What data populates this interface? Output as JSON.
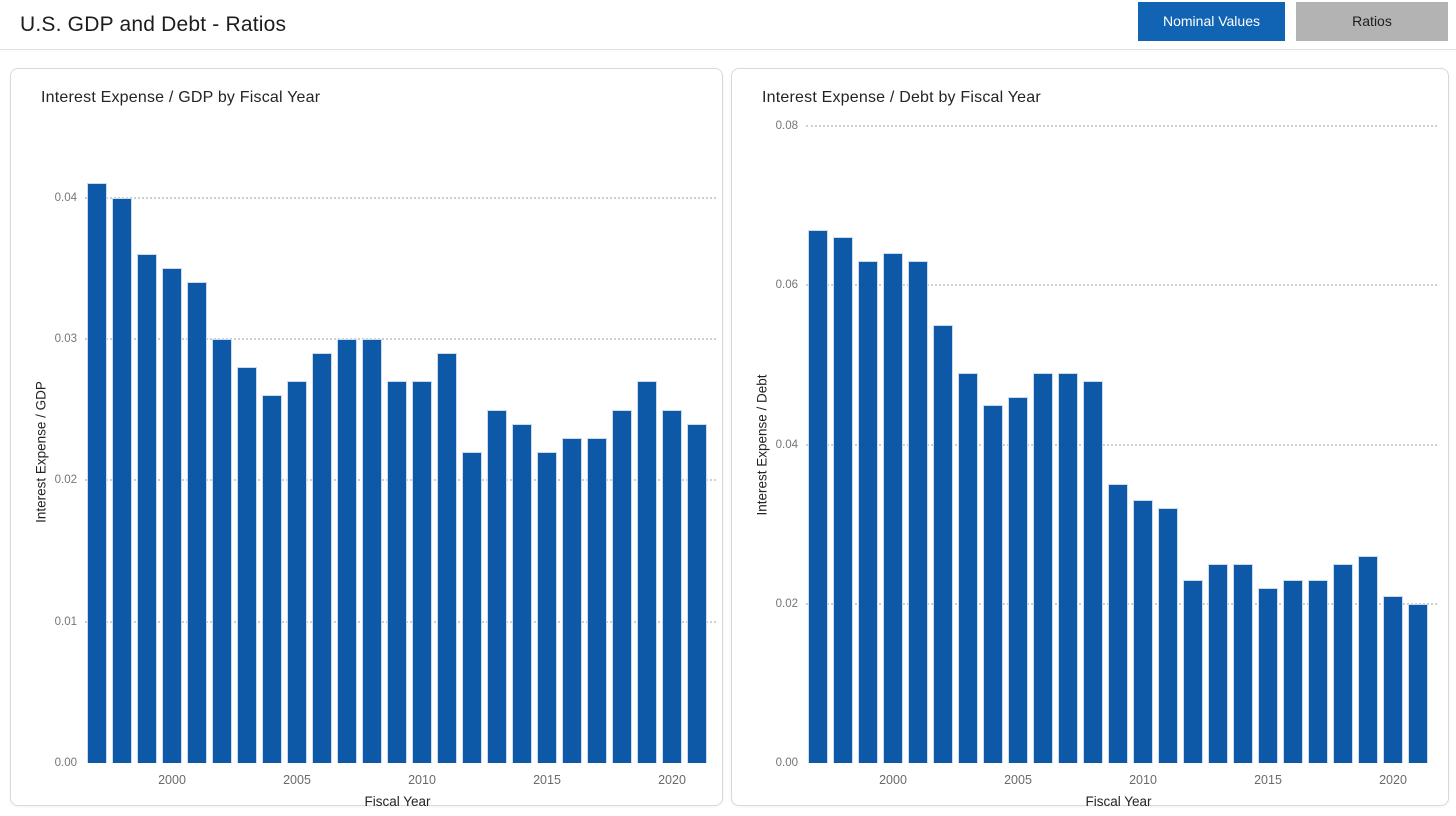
{
  "header": {
    "title": "U.S. GDP and Debt - Ratios",
    "buttons": [
      {
        "label": "Nominal Values",
        "active": true
      },
      {
        "label": "Ratios",
        "active": false
      }
    ]
  },
  "colors": {
    "bar_fill": "#0d59a8",
    "bar_edge": "#ccdbec",
    "active_button_bg": "#1164b4",
    "active_button_text": "#ffffff",
    "inactive_button_bg": "#b3b3b3",
    "gridline": "#cfcfcf",
    "axis_tick_text": "#757575",
    "axis_title_text": "#252423",
    "card_border": "#d9d9d9"
  },
  "chart_data": [
    {
      "type": "bar",
      "title": "Interest Expense / GDP by Fiscal Year",
      "xlabel": "Fiscal Year",
      "ylabel": "Interest Expense / GDP",
      "ylim": [
        0,
        0.044
      ],
      "yticks": [
        0.0,
        0.01,
        0.02,
        0.03,
        0.04
      ],
      "x_tick_years": [
        2000,
        2005,
        2010,
        2015,
        2020
      ],
      "grid": "dotted-horizontal",
      "legend": "none",
      "color": "#0d59a8",
      "x": [
        1997,
        1998,
        1999,
        2000,
        2001,
        2002,
        2003,
        2004,
        2005,
        2006,
        2007,
        2008,
        2009,
        2010,
        2011,
        2012,
        2013,
        2014,
        2015,
        2016,
        2017,
        2018,
        2019,
        2020,
        2021
      ],
      "values": [
        0.041,
        0.04,
        0.036,
        0.035,
        0.034,
        0.03,
        0.028,
        0.026,
        0.027,
        0.029,
        0.03,
        0.03,
        0.027,
        0.027,
        0.029,
        0.022,
        0.025,
        0.024,
        0.022,
        0.023,
        0.023,
        0.025,
        0.027,
        0.025,
        0.024
      ]
    },
    {
      "type": "bar",
      "title": "Interest Expense / Debt by Fiscal Year",
      "xlabel": "Fiscal Year",
      "ylabel": "Interest Expense / Debt",
      "ylim": [
        0,
        0.08
      ],
      "yticks": [
        0.0,
        0.02,
        0.04,
        0.06,
        0.08
      ],
      "x_tick_years": [
        2000,
        2005,
        2010,
        2015,
        2020
      ],
      "grid": "dotted-horizontal",
      "legend": "none",
      "color": "#0d59a8",
      "x": [
        1997,
        1998,
        1999,
        2000,
        2001,
        2002,
        2003,
        2004,
        2005,
        2006,
        2007,
        2008,
        2009,
        2010,
        2011,
        2012,
        2013,
        2014,
        2015,
        2016,
        2017,
        2018,
        2019,
        2020,
        2021
      ],
      "values": [
        0.067,
        0.066,
        0.063,
        0.064,
        0.063,
        0.055,
        0.049,
        0.045,
        0.046,
        0.049,
        0.049,
        0.048,
        0.035,
        0.033,
        0.032,
        0.023,
        0.025,
        0.025,
        0.022,
        0.023,
        0.023,
        0.025,
        0.026,
        0.021,
        0.02
      ]
    }
  ]
}
